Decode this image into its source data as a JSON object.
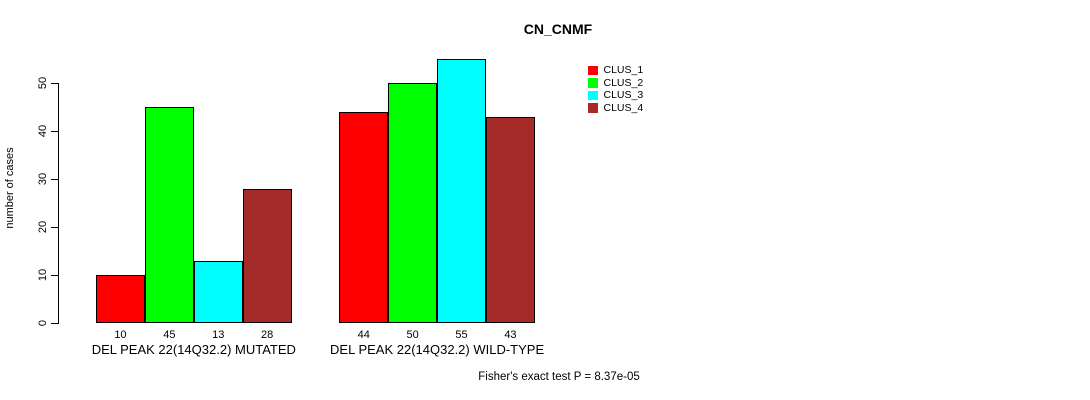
{
  "title": "CN_CNMF",
  "footnote": "Fisher's exact test P = 8.37e-05",
  "colors": {
    "background": "#ffffff",
    "axis": "#000000",
    "text": "#000000",
    "clus_1": "#ff0000",
    "clus_2": "#00ff00",
    "clus_3": "#00ffff",
    "clus_4": "#a52a2a"
  },
  "chart_data": {
    "type": "bar",
    "title": "CN_CNMF",
    "xlabel": "",
    "ylabel": "number of cases",
    "ylim": [
      0,
      55
    ],
    "yticks": [
      0,
      10,
      20,
      30,
      40,
      50
    ],
    "grid": "off",
    "legend_position": "right",
    "series": [
      {
        "name": "CLUS_1",
        "color": "#ff0000",
        "values": [
          10,
          44
        ]
      },
      {
        "name": "CLUS_2",
        "color": "#00ff00",
        "values": [
          45,
          50
        ]
      },
      {
        "name": "CLUS_3",
        "color": "#00ffff",
        "values": [
          13,
          55
        ]
      },
      {
        "name": "CLUS_4",
        "color": "#a52a2a",
        "values": [
          28,
          43
        ]
      }
    ],
    "categories": [
      "DEL PEAK 22(14Q32.2) MUTATED",
      "DEL PEAK 22(14Q32.2) WILD-TYPE"
    ],
    "bar_value_labels": [
      [
        10,
        45,
        13,
        28
      ],
      [
        44,
        50,
        55,
        43
      ]
    ],
    "annotation": "Fisher's exact test P = 8.37e-05"
  }
}
